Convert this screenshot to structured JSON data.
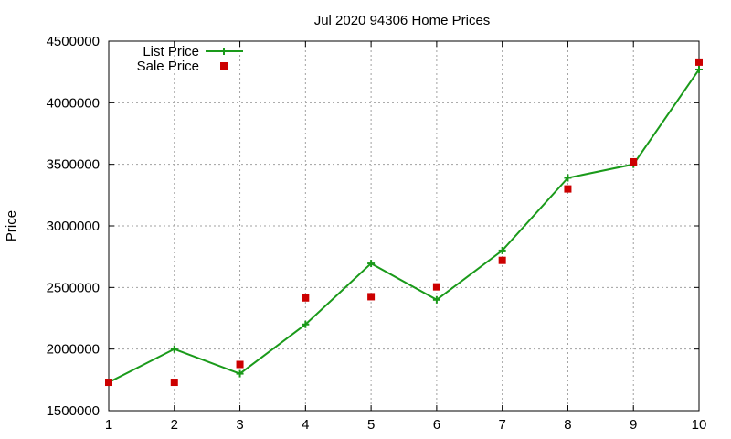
{
  "chart_data": {
    "type": "line",
    "title": "Jul 2020 94306 Home Prices",
    "xlabel": "",
    "ylabel": "Price",
    "x": [
      1,
      2,
      3,
      4,
      5,
      6,
      7,
      8,
      9,
      10
    ],
    "xlim": [
      1,
      10
    ],
    "ylim": [
      1500000,
      4500000
    ],
    "yticks": [
      1500000,
      2000000,
      2500000,
      3000000,
      3500000,
      4000000,
      4500000
    ],
    "xticks": [
      1,
      2,
      3,
      4,
      5,
      6,
      7,
      8,
      9,
      10
    ],
    "grid": true,
    "legend_position": "top-left",
    "series": [
      {
        "name": "List Price",
        "style": "line-with-plus-markers",
        "color": "#1a9a1a",
        "values": [
          1730000,
          2000000,
          1800000,
          2200000,
          2695000,
          2400000,
          2800000,
          3390000,
          3500000,
          4270000
        ]
      },
      {
        "name": "Sale Price",
        "style": "square-markers",
        "color": "#cc0000",
        "values": [
          1730000,
          1730000,
          1875000,
          2415000,
          2425000,
          2505000,
          2720000,
          3300000,
          3520000,
          4330000
        ]
      }
    ]
  }
}
